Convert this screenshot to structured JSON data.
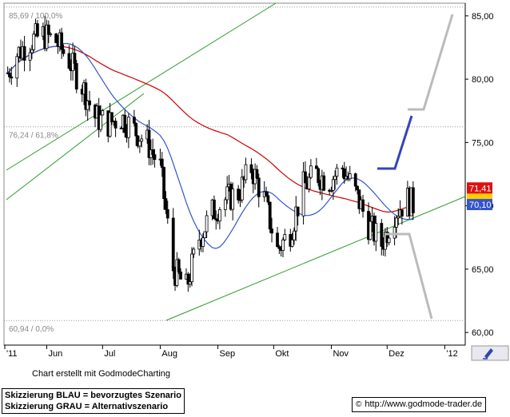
{
  "colors": {
    "background": "#ffffff",
    "candles": "#000000",
    "ma_red": "#cc0000",
    "ma_blue": "#3355cc",
    "trend_green": "#2a9a2a",
    "scenario_blue": "#3344bb",
    "scenario_gray": "#bbbbbb",
    "fib_line": "#999999",
    "red_badge": "#dd1111",
    "blue_badge": "#3355cc",
    "yellow_badge": "#ffcc00"
  },
  "chart_data": {
    "type": "line",
    "x": [
      "2011-05-11",
      "2011-05-16",
      "2011-05-23",
      "2011-05-30",
      "2011-06-06",
      "2011-06-13",
      "2011-06-20",
      "2011-06-27",
      "2011-07-04",
      "2011-07-11",
      "2011-07-18",
      "2011-07-25",
      "2011-08-01",
      "2011-08-08",
      "2011-08-15",
      "2011-08-22",
      "2011-08-29",
      "2011-09-05",
      "2011-09-12",
      "2011-09-19",
      "2011-09-26",
      "2011-10-03",
      "2011-10-10",
      "2011-10-17",
      "2011-10-24",
      "2011-10-31",
      "2011-11-07",
      "2011-11-14",
      "2011-11-21",
      "2011-11-28",
      "2011-12-05",
      "2011-12-12",
      "2011-12-15"
    ],
    "series": [
      {
        "values": [
          80.5,
          82.0,
          83.0,
          83.5,
          83.0,
          81.5,
          79.5,
          77.0,
          76.5,
          77.0,
          76.0,
          75.0,
          73.0,
          65.0,
          63.5,
          67.5,
          69.5,
          70.5,
          71.0,
          73.0,
          70.5,
          66.5,
          68.0,
          71.5,
          72.5,
          72.0,
          73.0,
          71.0,
          68.5,
          67.0,
          69.5,
          70.5,
          70.1
        ]
      }
    ],
    "ylim": [
      59.0,
      86.0
    ],
    "ytick_labels": [
      "60,00",
      "65,00",
      "70,00",
      "75,00",
      "80,00",
      "85,00"
    ],
    "xtick_labels": [
      "'11",
      "Jun",
      "Jul",
      "Aug",
      "Sep",
      "Okt",
      "Nov",
      "Dez",
      "'12"
    ],
    "fib_levels": [
      {
        "label": "85,69 / 100,0%",
        "value": 85.69
      },
      {
        "label": "76,24 / 61,8%",
        "value": 76.24
      },
      {
        "label": "60,94 / 0,0%",
        "value": 60.94
      }
    ],
    "value_badges": [
      "71,41",
      "70,10"
    ],
    "grid": false
  },
  "footer": {
    "credit": "Chart erstellt mit GodmodeCharting",
    "legend_blue": "Skizzierung BLAU = bevorzugtes Szenario",
    "legend_gray": "Skizzierung GRAU = Alternativszenario",
    "source": "http://www.godmode-trader.de"
  }
}
